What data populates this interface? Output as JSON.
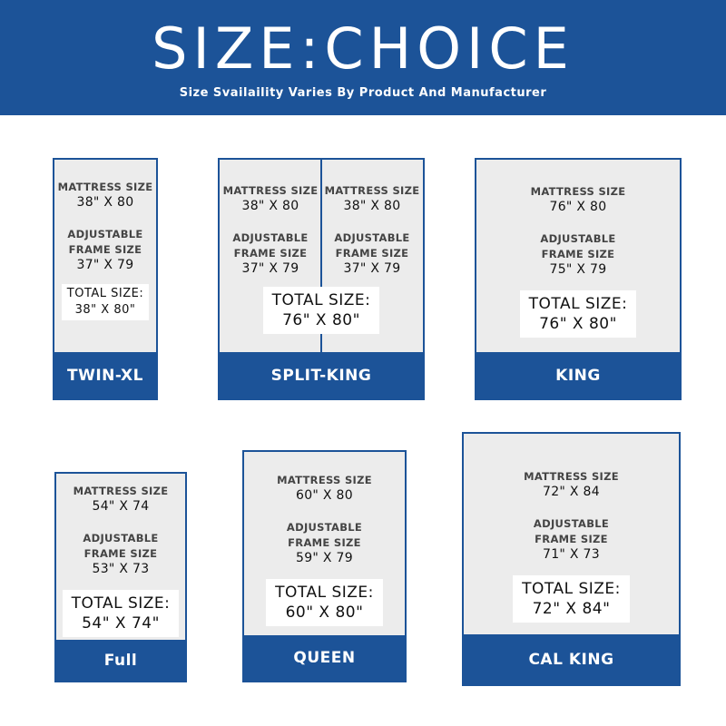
{
  "header": {
    "title": "SIZE:CHOICE",
    "subtitle": "Size Svailaility Varies By Product And Manufacturer"
  },
  "labels": {
    "mattress": "MATTRESS SIZE",
    "adjustable": "ADJUSTABLE",
    "frame": "FRAME SIZE",
    "total": "TOTAL SIZE:"
  },
  "colors": {
    "brand": "#1c5398",
    "panel": "#ececec"
  },
  "cards": [
    {
      "name": "TWIN-XL",
      "mattress": "38\" X 80",
      "frame": "37\" X 79",
      "total": "38\" X 80\""
    },
    {
      "name": "SPLIT-KING",
      "mattress": "38\" X 80",
      "frame": "37\" X 79",
      "mattress_right": "38\" X 80",
      "frame_right": "37\" X 79",
      "total": "76\" X 80\""
    },
    {
      "name": "KING",
      "mattress": "76\" X 80",
      "frame": "75\" X 79",
      "total": "76\" X 80\""
    },
    {
      "name": "Full",
      "mattress": "54\" X 74",
      "frame": "53\" X 73",
      "total": "54\" X 74\""
    },
    {
      "name": "QUEEN",
      "mattress": "60\" X 80",
      "frame": "59\" X 79",
      "total": "60\" X 80\""
    },
    {
      "name": "CAL KING",
      "mattress": "72\" X 84",
      "frame": "71\" X 73",
      "total": "72\" X 84\""
    }
  ]
}
